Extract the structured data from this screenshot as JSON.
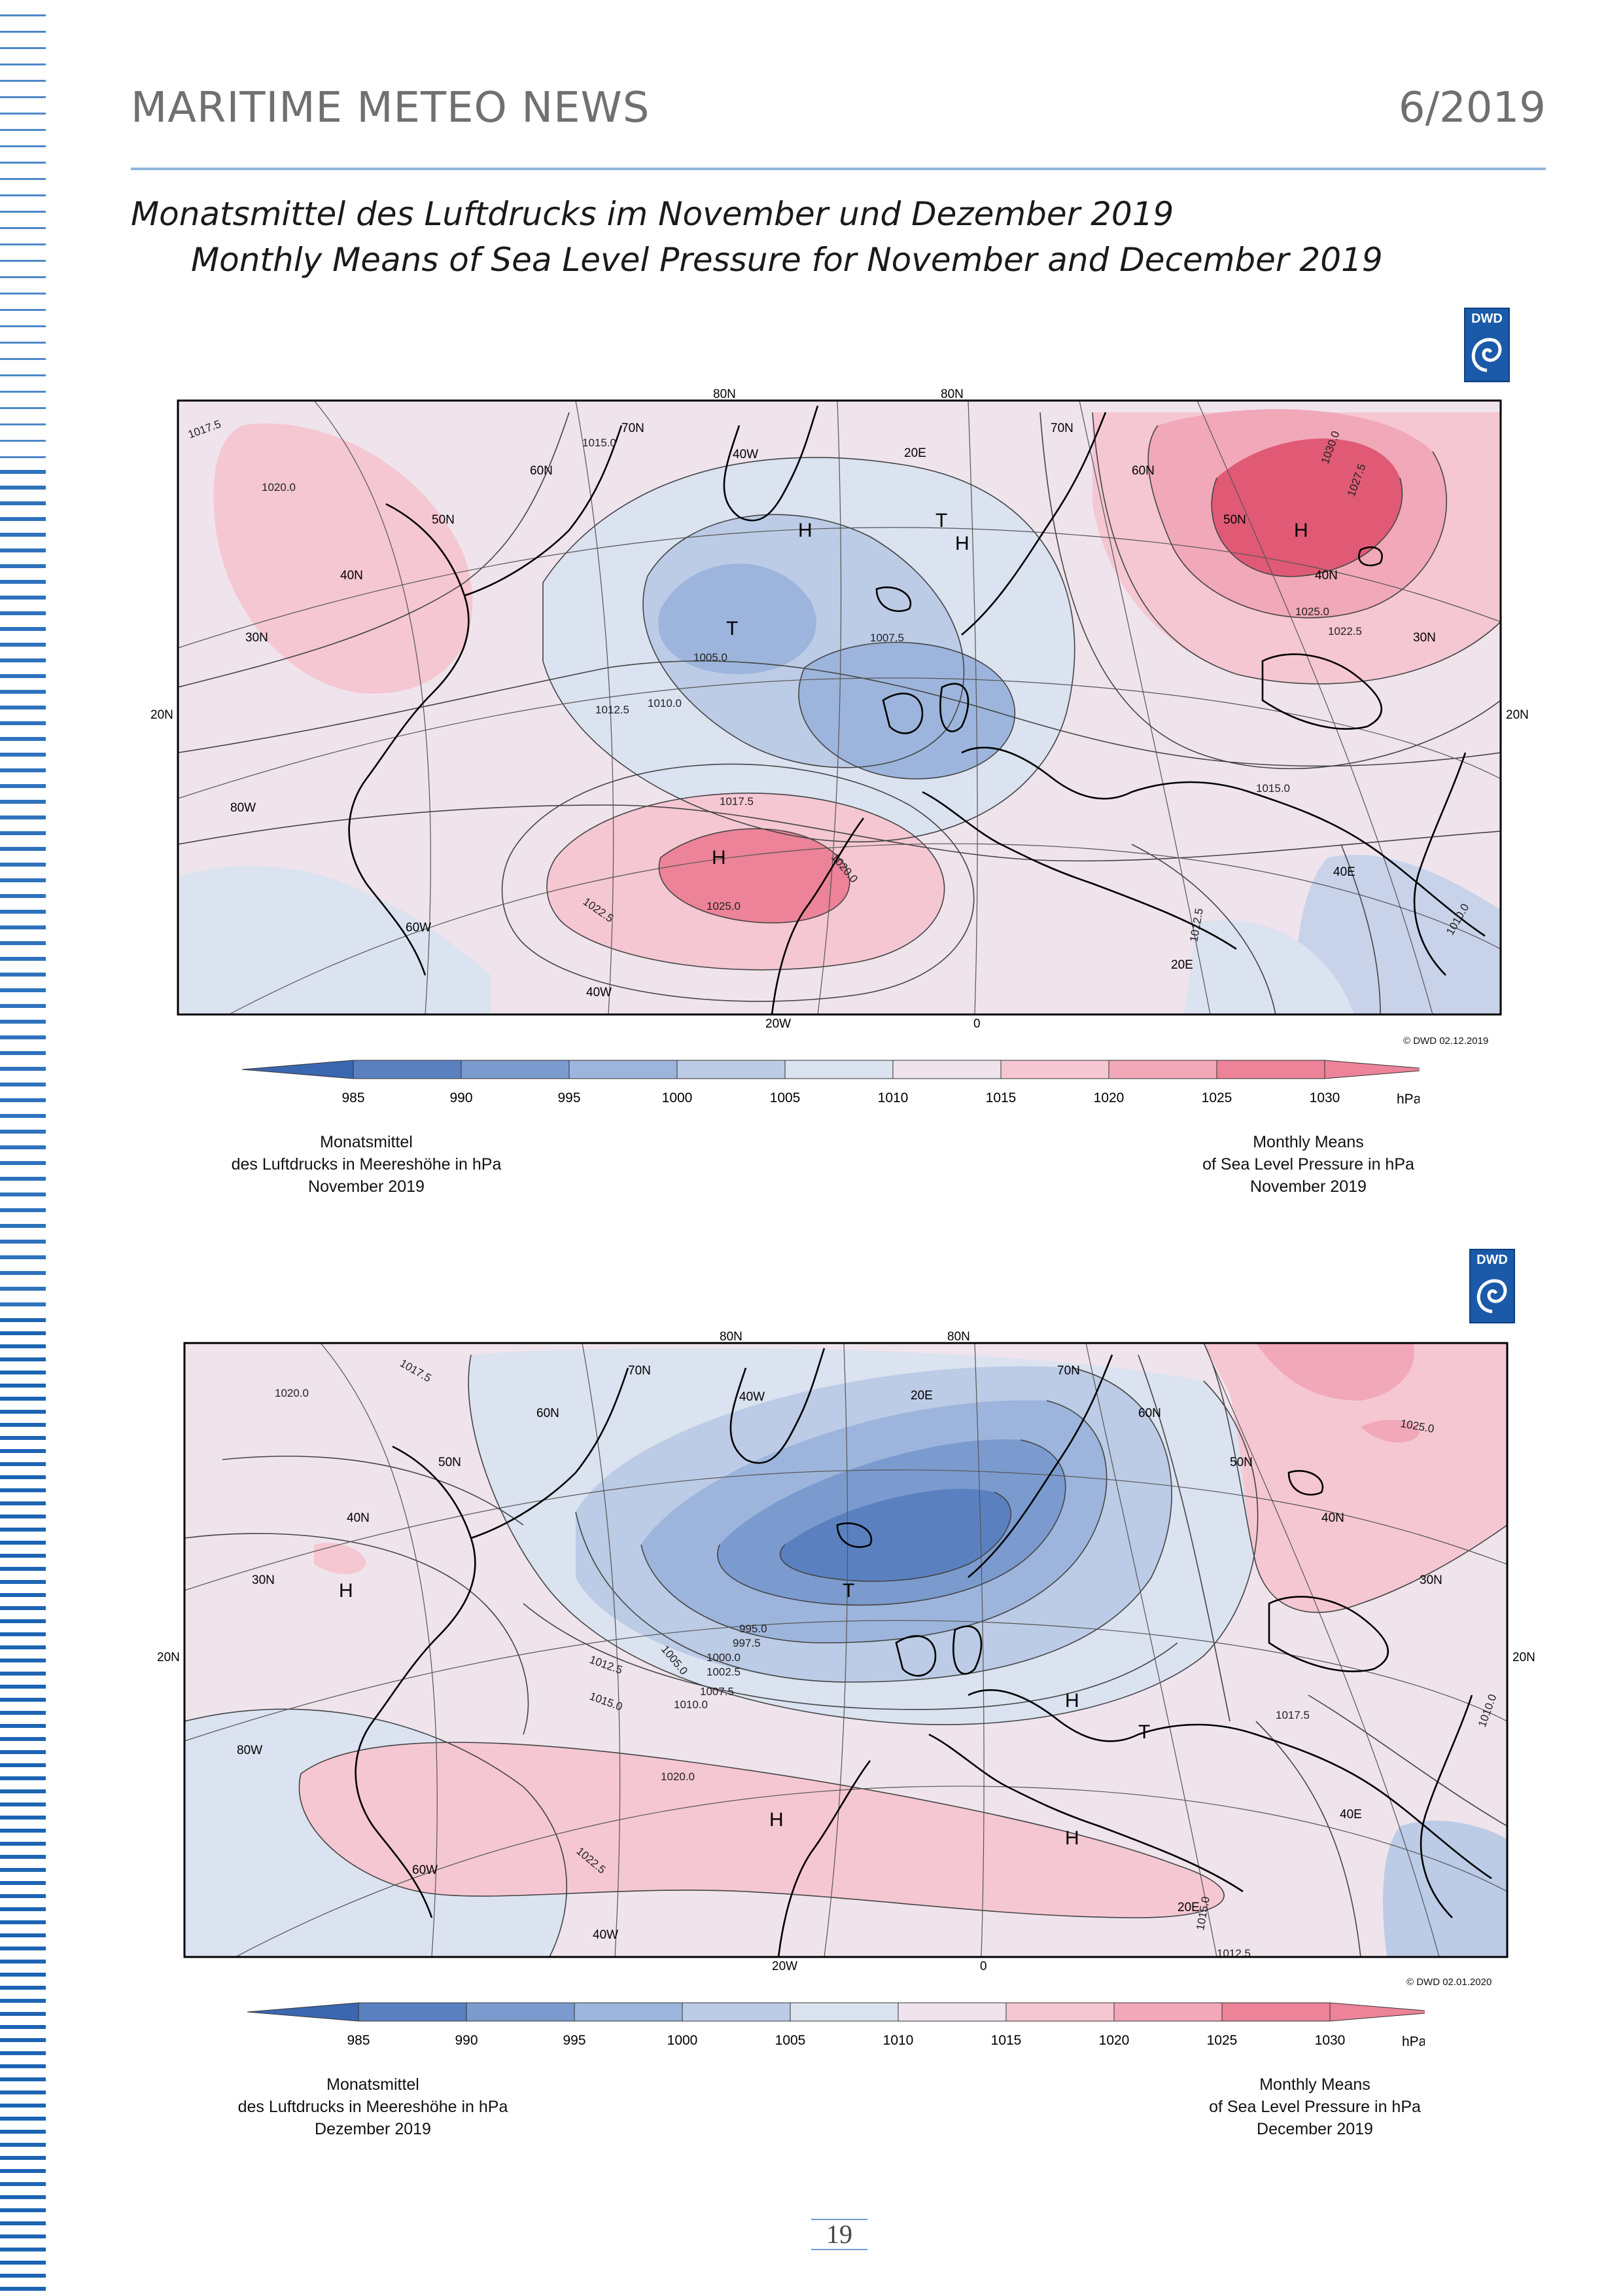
{
  "header": {
    "title": "MARITIME METEO NEWS",
    "issue": "6/2019"
  },
  "titles": {
    "german": "Monatsmittel des Luftdrucks im November und Dezember 2019",
    "english": "Monthly Means of Sea Level Pressure for November and December 2019"
  },
  "logo_text": "DWD",
  "colors": {
    "stripe": "#1d64b3",
    "rule": "#8eb6dc",
    "low_deep": "#4a74b8",
    "high_deep": "#e05a75"
  },
  "legend": {
    "ticks": [
      "985",
      "990",
      "995",
      "1000",
      "1005",
      "1010",
      "1015",
      "1020",
      "1025",
      "1030"
    ],
    "unit": "hPa",
    "colors": [
      "#3b66b0",
      "#5a80c0",
      "#7b9bcf",
      "#9db5dc",
      "#bccbe6",
      "#dbe2f0",
      "#efe4ec",
      "#f5c7d2",
      "#f1a8b8",
      "#ec8398"
    ]
  },
  "maps": [
    {
      "id": "november",
      "copyright": "© DWD 02.12.2019",
      "caption_de": [
        "Monatsmittel",
        "des Luftdrucks in Meereshöhe in hPa",
        "November 2019"
      ],
      "caption_en": [
        "Monthly Means",
        "of Sea Level Pressure in hPa",
        "November 2019"
      ],
      "grid_labels": [
        "80N",
        "80N",
        "70N",
        "70N",
        "60N",
        "60N",
        "50N",
        "50N",
        "40N",
        "40N",
        "30N",
        "30N",
        "20N",
        "20N",
        "80W",
        "60W",
        "40W",
        "20W",
        "0",
        "20E",
        "40E",
        "20E",
        "40W"
      ],
      "centers": [
        {
          "type": "H",
          "pressure_zone": "1025"
        },
        {
          "type": "H",
          "pressure_zone": "1030"
        },
        {
          "type": "T",
          "pressure_zone": "1005"
        },
        {
          "type": "H",
          "pressure_zone": "1012.5"
        },
        {
          "type": "T",
          "pressure_zone": "1012.5"
        },
        {
          "type": "H",
          "pressure_zone": "1012.5"
        }
      ],
      "isobar_labels": [
        "1017.5",
        "1020.0",
        "1015.0",
        "1012.5",
        "1010.0",
        "1005.0",
        "1007.5",
        "1022.5",
        "1025.0",
        "1027.5",
        "1030.0",
        "1017.5",
        "1015.0",
        "1012.5",
        "1010.0",
        "1020.0",
        "1022.5",
        "1025.0"
      ]
    },
    {
      "id": "december",
      "copyright": "© DWD 02.01.2020",
      "caption_de": [
        "Monatsmittel",
        "des Luftdrucks in Meereshöhe in hPa",
        "Dezember 2019"
      ],
      "caption_en": [
        "Monthly Means",
        "of Sea Level Pressure in hPa",
        "December 2019"
      ],
      "grid_labels": [
        "80N",
        "80N",
        "70N",
        "70N",
        "60N",
        "60N",
        "50N",
        "50N",
        "40N",
        "40N",
        "30N",
        "30N",
        "20N",
        "20N",
        "80W",
        "60W",
        "40W",
        "20W",
        "0",
        "20E",
        "40E",
        "20E",
        "40W"
      ],
      "centers": [
        {
          "type": "T",
          "pressure_zone": "995"
        },
        {
          "type": "H",
          "pressure_zone": "1020"
        },
        {
          "type": "H",
          "pressure_zone": "1022.5"
        },
        {
          "type": "H",
          "pressure_zone": "1020"
        },
        {
          "type": "H",
          "pressure_zone": "1017.5"
        },
        {
          "type": "T",
          "pressure_zone": "1015"
        }
      ],
      "isobar_labels": [
        "1020.0",
        "1017.5",
        "1015.0",
        "1012.5",
        "1010.0",
        "1007.5",
        "1005.0",
        "1002.5",
        "1000.0",
        "997.5",
        "995.0",
        "1022.5",
        "1025.0",
        "1020.0",
        "1017.5",
        "1015.0",
        "1012.5",
        "1010.0"
      ]
    }
  ],
  "page_number": "19"
}
